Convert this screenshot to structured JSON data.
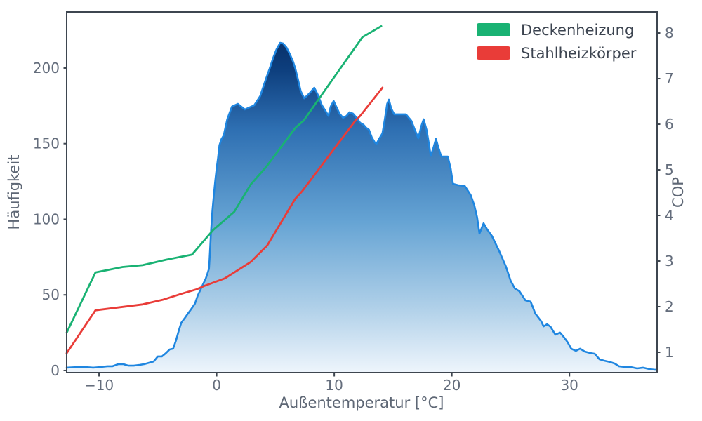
{
  "chart_data": {
    "type": "area",
    "title": "",
    "xlabel": "Außentemperatur [°C]",
    "ylabel_left": "Häufigkeit",
    "ylabel_right": "COP",
    "x_ticks": [
      -10,
      0,
      10,
      20,
      30
    ],
    "y_left_ticks": [
      0,
      50,
      100,
      150,
      200
    ],
    "y_right_ticks": [
      1,
      2,
      3,
      4,
      5,
      6,
      7,
      8
    ],
    "xlim": [
      -12.75,
      37.45
    ],
    "ylim_left": [
      -1.4,
      237.1
    ],
    "ylim_right": [
      0.554,
      8.462
    ],
    "grid": false,
    "legend_position": "top-right",
    "histogram": {
      "name": "Häufigkeit",
      "line_color": "#1f86e0",
      "gradient_stops": [
        "#083068",
        "#0d3e7d",
        "#2e6fb2",
        "#66a4d4",
        "#aecfe8",
        "#eef5fc"
      ],
      "gradient_offsets": [
        0,
        0.09,
        0.27,
        0.55,
        0.8,
        1
      ],
      "points": [
        [
          -12.75,
          1.9
        ],
        [
          -11.8,
          2.3
        ],
        [
          -11.2,
          2.3
        ],
        [
          -10.5,
          1.9
        ],
        [
          -9.85,
          2.3
        ],
        [
          -9.3,
          2.8
        ],
        [
          -8.85,
          2.8
        ],
        [
          -8.35,
          4.2
        ],
        [
          -7.95,
          4.2
        ],
        [
          -7.5,
          3.2
        ],
        [
          -7.05,
          3.2
        ],
        [
          -6.55,
          3.7
        ],
        [
          -6.15,
          4.2
        ],
        [
          -5.75,
          5.1
        ],
        [
          -5.35,
          6.0
        ],
        [
          -5.0,
          9.3
        ],
        [
          -4.65,
          9.3
        ],
        [
          -4.3,
          11.6
        ],
        [
          -4.0,
          13.9
        ],
        [
          -3.7,
          14.4
        ],
        [
          -3.45,
          20
        ],
        [
          -3.2,
          26.9
        ],
        [
          -3.0,
          31.6
        ],
        [
          -2.7,
          34.8
        ],
        [
          -2.4,
          38.1
        ],
        [
          -2.15,
          40.8
        ],
        [
          -1.85,
          44.1
        ],
        [
          -1.6,
          49.7
        ],
        [
          -1.35,
          53.8
        ],
        [
          -1.15,
          57.1
        ],
        [
          -0.95,
          60.3
        ],
        [
          -0.8,
          63.6
        ],
        [
          -0.65,
          67.3
        ],
        [
          -0.6,
          73.3
        ],
        [
          -0.48,
          91.9
        ],
        [
          -0.36,
          105.8
        ],
        [
          -0.24,
          116
        ],
        [
          -0.12,
          125.3
        ],
        [
          0,
          133.6
        ],
        [
          0.12,
          140.6
        ],
        [
          0.24,
          149
        ],
        [
          0.42,
          153.1
        ],
        [
          0.6,
          155.5
        ],
        [
          0.9,
          166.1
        ],
        [
          1.3,
          174.5
        ],
        [
          1.8,
          176.3
        ],
        [
          2.4,
          172.6
        ],
        [
          2.8,
          174
        ],
        [
          3.2,
          175.4
        ],
        [
          3.7,
          181.4
        ],
        [
          4.2,
          193
        ],
        [
          4.5,
          199.5
        ],
        [
          4.8,
          206.5
        ],
        [
          5.1,
          212.5
        ],
        [
          5.4,
          216.7
        ],
        [
          5.65,
          216.2
        ],
        [
          5.95,
          213.5
        ],
        [
          6.25,
          208.8
        ],
        [
          6.5,
          204.2
        ],
        [
          6.7,
          199.5
        ],
        [
          6.9,
          193
        ],
        [
          7.15,
          184.7
        ],
        [
          7.45,
          180
        ],
        [
          7.9,
          183.3
        ],
        [
          8.3,
          187
        ],
        [
          8.6,
          182.4
        ],
        [
          8.95,
          175.4
        ],
        [
          9.25,
          171.7
        ],
        [
          9.5,
          168.4
        ],
        [
          9.7,
          174.5
        ],
        [
          9.95,
          178.2
        ],
        [
          10.2,
          174
        ],
        [
          10.45,
          169.8
        ],
        [
          10.75,
          167.1
        ],
        [
          11.05,
          168.4
        ],
        [
          11.3,
          170.8
        ],
        [
          11.6,
          169.8
        ],
        [
          11.9,
          167.1
        ],
        [
          12.2,
          163.8
        ],
        [
          12.5,
          162.4
        ],
        [
          12.7,
          160.6
        ],
        [
          12.95,
          159.2
        ],
        [
          13.2,
          154.1
        ],
        [
          13.45,
          150.8
        ],
        [
          13.6,
          149.9
        ],
        [
          13.85,
          153.6
        ],
        [
          14.1,
          156.8
        ],
        [
          14.3,
          166.1
        ],
        [
          14.5,
          176.3
        ],
        [
          14.65,
          179.1
        ],
        [
          14.85,
          173.1
        ],
        [
          15.1,
          169.4
        ],
        [
          15.65,
          169.4
        ],
        [
          16.1,
          169.4
        ],
        [
          16.55,
          165.2
        ],
        [
          16.85,
          159.2
        ],
        [
          17.15,
          153.6
        ],
        [
          17.4,
          161.5
        ],
        [
          17.6,
          166.1
        ],
        [
          17.85,
          159.2
        ],
        [
          18.05,
          149.9
        ],
        [
          18.2,
          142
        ],
        [
          18.45,
          147.6
        ],
        [
          18.65,
          153.1
        ],
        [
          18.85,
          147.6
        ],
        [
          19.1,
          141.5
        ],
        [
          19.65,
          141.5
        ],
        [
          19.9,
          133.6
        ],
        [
          20.1,
          123.4
        ],
        [
          20.55,
          122.5
        ],
        [
          21.1,
          122
        ],
        [
          21.6,
          116
        ],
        [
          21.9,
          109.5
        ],
        [
          22.15,
          101.2
        ],
        [
          22.35,
          90.5
        ],
        [
          22.7,
          97.4
        ],
        [
          23,
          93.3
        ],
        [
          23.4,
          89.1
        ],
        [
          24,
          79.4
        ],
        [
          24.6,
          68.7
        ],
        [
          25,
          59.4
        ],
        [
          25.35,
          54.3
        ],
        [
          25.75,
          52.4
        ],
        [
          26.25,
          46.4
        ],
        [
          26.7,
          45.5
        ],
        [
          27.1,
          37.6
        ],
        [
          27.6,
          32.5
        ],
        [
          27.8,
          29.2
        ],
        [
          28.1,
          30.6
        ],
        [
          28.4,
          28.8
        ],
        [
          28.8,
          23.7
        ],
        [
          29.2,
          25.1
        ],
        [
          29.55,
          21.8
        ],
        [
          29.85,
          18.6
        ],
        [
          30.15,
          14.4
        ],
        [
          30.55,
          13
        ],
        [
          30.9,
          14.4
        ],
        [
          31.3,
          12.5
        ],
        [
          31.75,
          11.6
        ],
        [
          32.15,
          11.1
        ],
        [
          32.55,
          7.4
        ],
        [
          32.95,
          6.5
        ],
        [
          33.45,
          5.6
        ],
        [
          33.85,
          4.6
        ],
        [
          34.2,
          2.8
        ],
        [
          34.75,
          2.3
        ],
        [
          35.2,
          2.3
        ],
        [
          35.75,
          1.4
        ],
        [
          36.25,
          1.9
        ],
        [
          36.8,
          0.9
        ],
        [
          37.25,
          0.5
        ],
        [
          37.45,
          0.5
        ]
      ]
    },
    "series": [
      {
        "name": "Deckenheizung",
        "color": "#19b273",
        "axis": "right",
        "points": [
          [
            -12.75,
            1.43
          ],
          [
            -10.3,
            2.75
          ],
          [
            -8,
            2.87
          ],
          [
            -6.3,
            2.91
          ],
          [
            -4.3,
            3.03
          ],
          [
            -2.1,
            3.14
          ],
          [
            -0.3,
            3.68
          ],
          [
            1.5,
            4.08
          ],
          [
            2.9,
            4.68
          ],
          [
            4.2,
            5.06
          ],
          [
            6.7,
            5.92
          ],
          [
            7.4,
            6.08
          ],
          [
            10.4,
            7.18
          ],
          [
            12.4,
            7.91
          ],
          [
            14,
            8.15
          ]
        ]
      },
      {
        "name": "Stahlheizkörper",
        "color": "#e93c38",
        "axis": "right",
        "points": [
          [
            -12.75,
            0.98
          ],
          [
            -10.3,
            1.92
          ],
          [
            -6.3,
            2.05
          ],
          [
            -4.6,
            2.15
          ],
          [
            -2.9,
            2.29
          ],
          [
            -1.7,
            2.38
          ],
          [
            -1.1,
            2.45
          ],
          [
            0.7,
            2.62
          ],
          [
            2.9,
            2.98
          ],
          [
            4.3,
            3.34
          ],
          [
            6.7,
            4.37
          ],
          [
            7.3,
            4.54
          ],
          [
            11.8,
            6.08
          ],
          [
            12.2,
            6.18
          ],
          [
            14.1,
            6.8
          ]
        ]
      }
    ],
    "colors": {
      "frame": "#3e4650",
      "tick_label": "#646d7c",
      "axis_label": "#5e6775",
      "legend_text": "#3c4450"
    }
  }
}
